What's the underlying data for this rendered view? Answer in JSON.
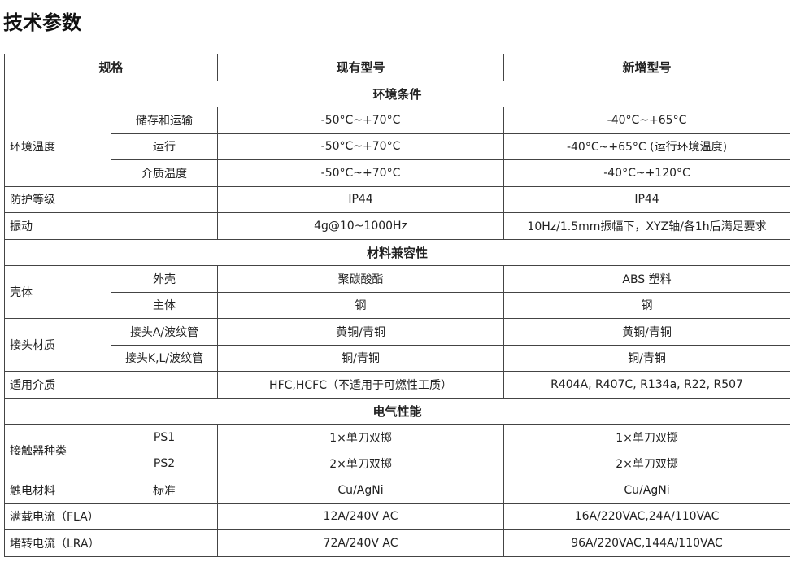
{
  "title": "技术参数",
  "header": {
    "spec": "规格",
    "current": "现有型号",
    "new": "新增型号"
  },
  "sections": {
    "env": "环境条件",
    "material": "材料兼容性",
    "electric": "电气性能"
  },
  "rows": {
    "env_temp": "环境温度",
    "storage": {
      "label": "储存和运输",
      "current": "-50°C~+70°C",
      "new": "-40°C~+65°C"
    },
    "operation": {
      "label": "运行",
      "current": "-50°C~+70°C",
      "new": "-40°C~+65°C (运行环境温度)"
    },
    "medium_temp": {
      "label": "介质温度",
      "current": "-50°C~+70°C",
      "new": "-40°C~+120°C"
    },
    "protection": {
      "label": "防护等级",
      "current": "IP44",
      "new": "IP44"
    },
    "vibration": {
      "label": "振动",
      "current": "4g@10~1000Hz",
      "new": "10Hz/1.5mm振幅下，XYZ轴/各1h后满足要求"
    },
    "housing": "壳体",
    "shell": {
      "label": "外壳",
      "current": "聚碳酸酯",
      "new": "ABS 塑料"
    },
    "body": {
      "label": "主体",
      "current": "钢",
      "new": "钢"
    },
    "fitting": "接头材质",
    "fitting_a": {
      "label": "接头A/波纹管",
      "current": "黄铜/青铜",
      "new": "黄铜/青铜"
    },
    "fitting_kl": {
      "label": "接头K,L/波纹管",
      "current": "铜/青铜",
      "new": "铜/青铜"
    },
    "media": {
      "label": "适用介质",
      "current": "HFC,HCFC（不适用于可燃性工质）",
      "new": "R404A, R407C, R134a, R22, R507"
    },
    "contact_type": "接触器种类",
    "ps1": {
      "label": "PS1",
      "current": "1×单刀双掷",
      "new": "1×单刀双掷"
    },
    "ps2": {
      "label": "PS2",
      "current": "2×单刀双掷",
      "new": "2×单刀双掷"
    },
    "contact_material": {
      "label": "触电材料",
      "sub": "标准",
      "current": "Cu/AgNi",
      "new": "Cu/AgNi"
    },
    "fla": {
      "label": "满载电流（FLA）",
      "current": "12A/240V AC",
      "new": "16A/220VAC,24A/110VAC"
    },
    "lra": {
      "label": "堵转电流（LRA）",
      "current": "72A/240V AC",
      "new": "96A/220VAC,144A/110VAC"
    }
  }
}
